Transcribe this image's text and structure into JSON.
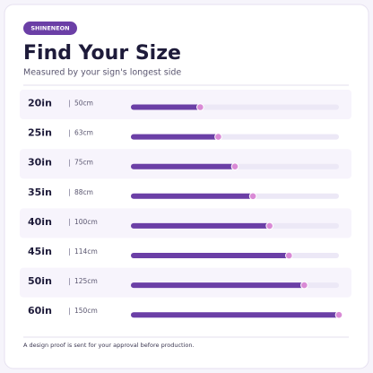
{
  "badge": "SHINENEON",
  "title": "Find Your Size",
  "subtitle": "Measured by your sign's longest side",
  "footer": "A design proof is sent for your approval before production.",
  "chart_data": {
    "type": "bar",
    "orientation": "horizontal",
    "categories": [
      "20in",
      "25in",
      "30in",
      "35in",
      "40in",
      "45in",
      "50in",
      "60in"
    ],
    "values": [
      50,
      63,
      75,
      88,
      100,
      114,
      125,
      150
    ],
    "value_labels": [
      "50cm",
      "63cm",
      "75cm",
      "88cm",
      "100cm",
      "114cm",
      "125cm",
      "150cm"
    ],
    "xlim": [
      0,
      150
    ],
    "color": "#6b3fa6"
  }
}
